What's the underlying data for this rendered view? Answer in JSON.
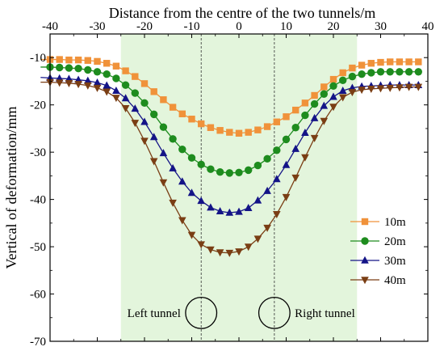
{
  "chart_data": {
    "type": "line",
    "title": "",
    "xlabel": "Distance from the centre of the two tunnels/m",
    "ylabel": "Vertical of deformation/mm",
    "xlim": [
      -40,
      40
    ],
    "ylim": [
      -70,
      -5
    ],
    "x_ticks": [
      -40,
      -30,
      -20,
      -10,
      0,
      10,
      20,
      30,
      40
    ],
    "y_ticks": [
      -10,
      -20,
      -30,
      -40,
      -50,
      -60,
      -70
    ],
    "grid": false,
    "x_axis_position": "top",
    "legend_position": "right",
    "highlight_band": {
      "x": [
        -25,
        25
      ],
      "color": "#e3f5dc"
    },
    "tunnel_centerlines": [
      -8,
      7.5
    ],
    "tunnels": [
      {
        "label": "Left tunnel",
        "x": -8,
        "y": -64,
        "radius": 3.3
      },
      {
        "label": "Right tunnel",
        "x": 7.5,
        "y": -64,
        "radius": 3.3
      }
    ],
    "x": [
      -42,
      -40,
      -38,
      -36,
      -34,
      -32,
      -30,
      -28,
      -26,
      -24,
      -22,
      -20,
      -18,
      -16,
      -14,
      -12,
      -10,
      -8,
      -6,
      -4,
      -2,
      0,
      2,
      4,
      6,
      8,
      10,
      12,
      14,
      16,
      18,
      20,
      22,
      24,
      26,
      28,
      30,
      32,
      34,
      36,
      38
    ],
    "series": [
      {
        "name": "10m",
        "color": "#f0923a",
        "marker": "square",
        "values": [
          -10.4,
          -10.4,
          -10.4,
          -10.5,
          -10.5,
          -10.6,
          -10.8,
          -11.2,
          -11.8,
          -12.8,
          -14.0,
          -15.5,
          -17.2,
          -18.9,
          -20.5,
          -21.9,
          -23.0,
          -24.0,
          -24.8,
          -25.4,
          -25.8,
          -26.0,
          -25.8,
          -25.3,
          -24.6,
          -23.6,
          -22.5,
          -21.1,
          -19.6,
          -18.0,
          -16.2,
          -14.6,
          -13.2,
          -12.2,
          -11.6,
          -11.2,
          -11.0,
          -10.9,
          -10.9,
          -10.9,
          -10.9
        ]
      },
      {
        "name": "20m",
        "color": "#1e8c1e",
        "marker": "circle",
        "values": [
          -12.0,
          -12.0,
          -12.1,
          -12.2,
          -12.3,
          -12.6,
          -13.0,
          -13.5,
          -14.4,
          -15.8,
          -17.5,
          -19.6,
          -22.0,
          -24.7,
          -27.2,
          -29.4,
          -31.2,
          -32.6,
          -33.6,
          -34.2,
          -34.4,
          -34.3,
          -33.8,
          -32.8,
          -31.4,
          -29.6,
          -27.3,
          -24.8,
          -22.2,
          -19.8,
          -17.7,
          -16.0,
          -14.8,
          -14.0,
          -13.5,
          -13.2,
          -13.0,
          -13.0,
          -13.0,
          -13.0,
          -13.0
        ]
      },
      {
        "name": "30m",
        "color": "#141487",
        "marker": "triangle-up",
        "values": [
          -14.2,
          -14.3,
          -14.4,
          -14.5,
          -14.7,
          -14.9,
          -15.3,
          -15.9,
          -17.0,
          -18.6,
          -20.8,
          -23.6,
          -26.8,
          -30.2,
          -33.4,
          -36.2,
          -38.6,
          -40.3,
          -41.7,
          -42.5,
          -42.8,
          -42.6,
          -41.8,
          -40.2,
          -38.2,
          -35.7,
          -32.7,
          -29.3,
          -25.9,
          -22.8,
          -20.2,
          -18.3,
          -17.0,
          -16.4,
          -16.1,
          -16.0,
          -15.9,
          -15.8,
          -15.8,
          -15.8,
          -15.8
        ]
      },
      {
        "name": "40m",
        "color": "#7a3e14",
        "marker": "triangle-down",
        "values": [
          -15.2,
          -15.2,
          -15.3,
          -15.4,
          -15.6,
          -15.9,
          -16.4,
          -17.2,
          -18.5,
          -20.7,
          -23.8,
          -27.6,
          -31.9,
          -36.4,
          -40.7,
          -44.4,
          -47.5,
          -49.5,
          -50.6,
          -51.2,
          -51.3,
          -51.0,
          -50.0,
          -48.3,
          -46.0,
          -43.1,
          -39.5,
          -35.4,
          -31.1,
          -27.0,
          -23.4,
          -20.4,
          -18.4,
          -17.3,
          -16.8,
          -16.6,
          -16.5,
          -16.4,
          -16.3,
          -16.2,
          -16.2
        ]
      }
    ]
  }
}
